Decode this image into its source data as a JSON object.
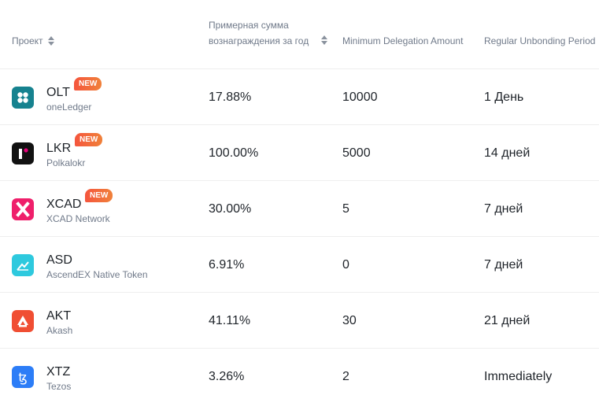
{
  "header": {
    "project": "Проект",
    "reward": "Примерная сумма вознаграждения за год",
    "min_delegation": "Minimum Delegation Amount",
    "unbonding": "Regular Unbonding Period"
  },
  "rows": [
    {
      "symbol": "OLT",
      "name": "oneLedger",
      "badge": "NEW",
      "reward": "17.88%",
      "min": "10000",
      "unbond": "1 День",
      "logo_icon": "oneledger-icon",
      "logo_color": "#16828f"
    },
    {
      "symbol": "LKR",
      "name": "Polkalokr",
      "badge": "NEW",
      "reward": "100.00%",
      "min": "5000",
      "unbond": "14 дней",
      "logo_icon": "polkalokr-icon",
      "logo_color": "#111111"
    },
    {
      "symbol": "XCAD",
      "name": "XCAD Network",
      "badge": "NEW",
      "reward": "30.00%",
      "min": "5",
      "unbond": "7 дней",
      "logo_icon": "xcad-icon",
      "logo_color": "#ef1f6b"
    },
    {
      "symbol": "ASD",
      "name": "AscendEX Native Token",
      "badge": "",
      "reward": "6.91%",
      "min": "0",
      "unbond": "7 дней",
      "logo_icon": "ascendex-icon",
      "logo_color": "#2ec9de"
    },
    {
      "symbol": "AKT",
      "name": "Akash",
      "badge": "",
      "reward": "41.11%",
      "min": "30",
      "unbond": "21 дней",
      "logo_icon": "akash-icon",
      "logo_color": "#f04e33"
    },
    {
      "symbol": "XTZ",
      "name": "Tezos",
      "badge": "",
      "reward": "3.26%",
      "min": "2",
      "unbond": "Immediately",
      "logo_icon": "tezos-icon",
      "logo_color": "#2c7df7"
    }
  ]
}
